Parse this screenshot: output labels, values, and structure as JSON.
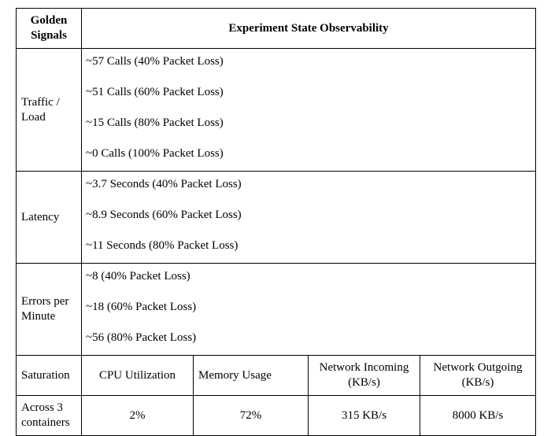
{
  "header": {
    "col1": "Golden Signals",
    "col2": "Experiment State Observability"
  },
  "rows": [
    {
      "label": "Traffic / Load",
      "lines": [
        "~57 Calls (40% Packet Loss)",
        "~51 Calls (60% Packet Loss)",
        "~15 Calls (80% Packet Loss)",
        "~0 Calls (100% Packet Loss)"
      ]
    },
    {
      "label": "Latency",
      "lines": [
        "~3.7 Seconds (40% Packet Loss)",
        "~8.9 Seconds (60% Packet Loss)",
        "~11 Seconds (80% Packet Loss)"
      ]
    },
    {
      "label": "Errors per Minute",
      "lines": [
        "~8 (40% Packet Loss)",
        "~18 (60% Packet Loss)",
        "~56 (80% Packet Loss)"
      ]
    }
  ],
  "saturation": {
    "label": "Saturation",
    "headers": [
      "CPU Utilization",
      "Memory Usage",
      "Network Incoming (KB/s)",
      "Network Outgoing (KB/s)"
    ],
    "row_label": "Across 3 containers",
    "values": [
      "2%",
      "72%",
      "315 KB/s",
      "8000 KB/s"
    ]
  }
}
